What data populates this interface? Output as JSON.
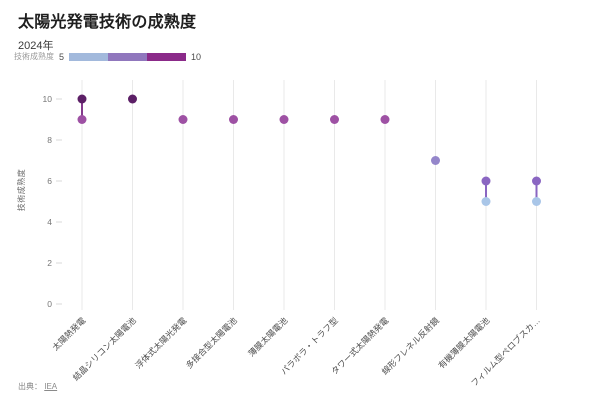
{
  "header": {
    "title": "太陽光発電技術の成熟度",
    "subtitle": "2024年"
  },
  "legend": {
    "label": "技術成熟度",
    "min": "5",
    "max": "10",
    "colors": [
      "#a2b9dc",
      "#9077bd",
      "#8b2a89"
    ]
  },
  "footer": {
    "source_label": "出典：",
    "source_link": "IEA"
  },
  "chart_data": {
    "type": "scatter",
    "title": "太陽光発電技術の成熟度",
    "subtitle": "2024年",
    "xlabel": "",
    "ylabel": "技術成熟度",
    "ylim": [
      0,
      10
    ],
    "yticks": [
      "0",
      "2",
      "4",
      "6",
      "8",
      "10"
    ],
    "grid": "vertical-only",
    "legend": {
      "label": "技術成熟度",
      "scale_min": 5,
      "scale_max": 10,
      "position": "top-left"
    },
    "categories": [
      "太陽熱発電",
      "結晶シリコン太陽電池",
      "浮体式太陽光発電",
      "多接合型太陽電池",
      "薄膜太陽電池",
      "パラボラ・トラフ型",
      "タワー式太陽熱発電",
      "線形フレネル反射鏡",
      "有機薄膜太陽電池",
      "フィルム型ペロブスカ…"
    ],
    "points": [
      {
        "category": "太陽熱発電",
        "values": [
          9,
          10
        ],
        "colors": [
          "#9e51a4",
          "#5c1f66"
        ],
        "line_color": "#843a8c"
      },
      {
        "category": "結晶シリコン太陽電池",
        "values": [
          10
        ],
        "colors": [
          "#5c1f66"
        ]
      },
      {
        "category": "浮体式太陽光発電",
        "values": [
          9
        ],
        "colors": [
          "#9e51a4"
        ]
      },
      {
        "category": "多接合型太陽電池",
        "values": [
          9
        ],
        "colors": [
          "#9e51a4"
        ]
      },
      {
        "category": "薄膜太陽電池",
        "values": [
          9
        ],
        "colors": [
          "#9e51a4"
        ]
      },
      {
        "category": "パラボラ・トラフ型",
        "values": [
          9
        ],
        "colors": [
          "#9e51a4"
        ]
      },
      {
        "category": "タワー式太陽熱発電",
        "values": [
          9
        ],
        "colors": [
          "#9e51a4"
        ]
      },
      {
        "category": "線形フレネル反射鏡",
        "values": [
          7
        ],
        "colors": [
          "#9486ca"
        ]
      },
      {
        "category": "有機薄膜太陽電池",
        "values": [
          5,
          6
        ],
        "colors": [
          "#a9c6e8",
          "#8a66c2"
        ],
        "line_color": "#8a66c2"
      },
      {
        "category": "フィルム型ペロブスカ…",
        "values": [
          5,
          6
        ],
        "colors": [
          "#a9c6e8",
          "#8a66c2"
        ],
        "line_color": "#8a66c2"
      }
    ]
  }
}
